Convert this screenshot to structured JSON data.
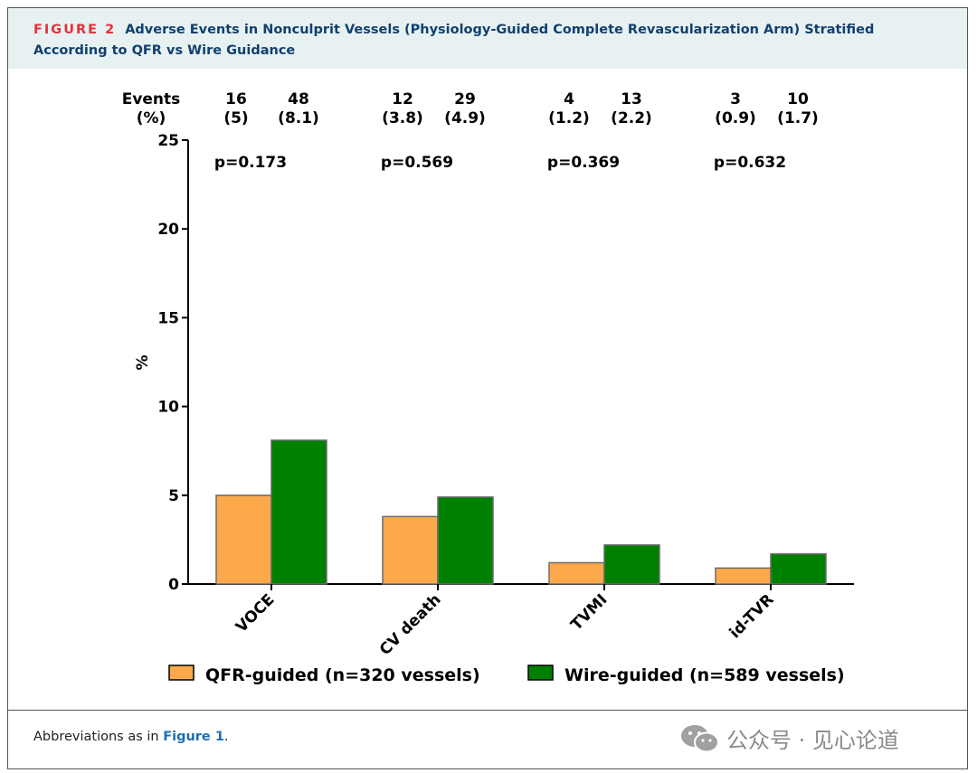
{
  "figure": {
    "label": "FIGURE 2",
    "title": "Adverse Events in Nonculprit Vessels (Physiology-Guided Complete Revascularization Arm) Stratified According to QFR vs Wire Guidance"
  },
  "footer": {
    "prefix": "Abbreviations as in ",
    "link": "Figure 1",
    "suffix": "."
  },
  "watermark": {
    "text": "公众号 · 见心论道",
    "icon": "wechat-icon"
  },
  "chart_data": {
    "type": "bar",
    "title": "",
    "xlabel": "",
    "ylabel": "%",
    "ylim": [
      0,
      25
    ],
    "yticks": [
      0,
      5,
      10,
      15,
      20,
      25
    ],
    "grid": false,
    "legend_position": "bottom",
    "categories": [
      "VOCE",
      "CV death",
      "TVMI",
      "id-TVR"
    ],
    "series": [
      {
        "name": "QFR-guided (n=320 vessels)",
        "color": "#fba94b",
        "values": [
          5,
          3.8,
          1.2,
          0.9
        ],
        "events": [
          "16",
          "12",
          "4",
          "3"
        ],
        "percents": [
          "(5)",
          "(3.8)",
          "(1.2)",
          "(0.9)"
        ]
      },
      {
        "name": "Wire-guided (n=589 vessels)",
        "color": "#008000",
        "values": [
          8.1,
          4.9,
          2.2,
          1.7
        ],
        "events": [
          "48",
          "29",
          "13",
          "10"
        ],
        "percents": [
          "(8.1)",
          "(4.9)",
          "(2.2)",
          "(1.7)"
        ]
      }
    ],
    "events_header": [
      "Events",
      "(%)"
    ],
    "p_values": [
      "p=0.173",
      "p=0.569",
      "p=0.369",
      "p=0.632"
    ]
  }
}
